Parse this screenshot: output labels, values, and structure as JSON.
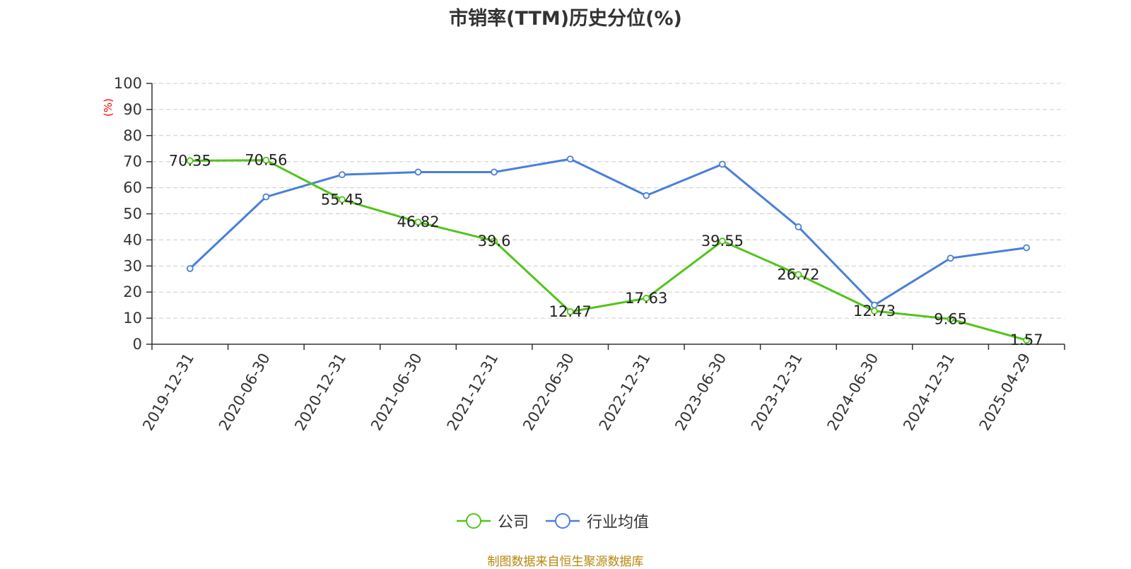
{
  "title": "市销率(TTM)历史分位(%)",
  "source": "制图数据来自恒生聚源数据库",
  "colors": {
    "company": "#52c41a",
    "industry": "#4a7fd9",
    "unit": "#ff0000",
    "source": "#b8860b"
  },
  "chart_data": {
    "type": "line",
    "title": "市销率(TTM)历史分位(%)",
    "ylabel": "(%)",
    "ylim": [
      0,
      100
    ],
    "yticks": [
      0,
      10,
      20,
      30,
      40,
      50,
      60,
      70,
      80,
      90,
      100
    ],
    "grid": true,
    "legend_position": "bottom",
    "categories": [
      "2019-12-31",
      "2020-06-30",
      "2020-12-31",
      "2021-06-30",
      "2021-12-31",
      "2022-06-30",
      "2022-12-31",
      "2023-06-30",
      "2023-12-31",
      "2024-06-30",
      "2024-12-31",
      "2025-04-29"
    ],
    "series": [
      {
        "name": "公司",
        "values": [
          70.35,
          70.56,
          55.45,
          46.82,
          39.6,
          12.47,
          17.63,
          39.55,
          26.72,
          12.73,
          9.65,
          1.57
        ],
        "labels": [
          "70.35",
          "70.56",
          "55.45",
          "46.82",
          "39.6",
          "12.47",
          "17.63",
          "39.55",
          "26.72",
          "12.73",
          "9.65",
          "1.57"
        ]
      },
      {
        "name": "行业均值",
        "values": [
          29,
          56.5,
          65,
          66,
          66,
          71,
          57,
          69,
          45,
          15,
          33,
          37
        ]
      }
    ]
  }
}
